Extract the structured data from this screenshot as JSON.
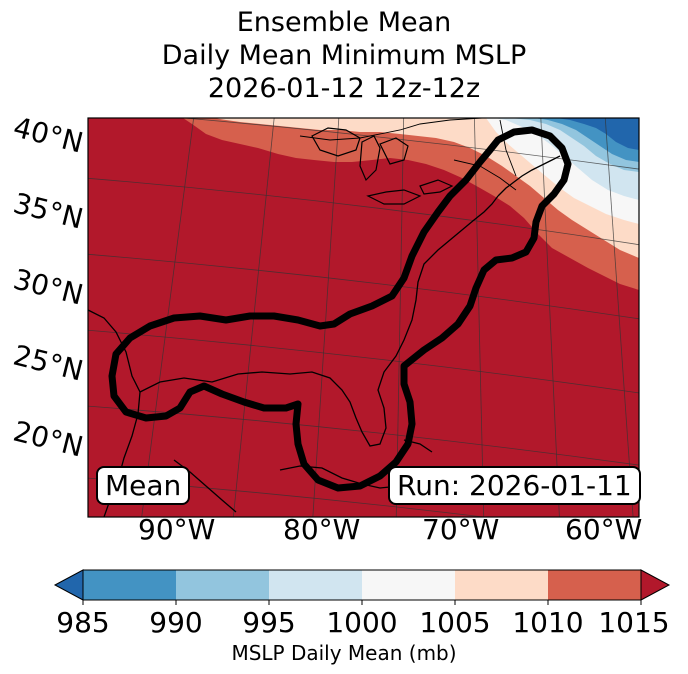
{
  "title": {
    "line1": "Ensemble Mean",
    "line2": "Daily Mean Minimum MSLP",
    "line3": "2026-01-12 12z-12z"
  },
  "map": {
    "lat_labels": [
      "40°N",
      "35°N",
      "30°N",
      "25°N",
      "20°N"
    ],
    "lon_labels": [
      "90°W",
      "80°W",
      "70°W",
      "60°W"
    ],
    "panel_label_left": "Mean",
    "panel_label_right": "Run: 2026-01-11"
  },
  "colorbar": {
    "ticks": [
      "985",
      "990",
      "995",
      "1000",
      "1005",
      "1010",
      "1015"
    ],
    "label": "MSLP Daily Mean (mb)",
    "colors": {
      "under": "#2166ac",
      "985-990": "#4393c3",
      "990-995": "#92c5de",
      "995-1000": "#d1e5f0",
      "1000-1005": "#f7f7f7",
      "1005-1010": "#fddbc7",
      "1010-1015": "#d6604d",
      "over": "#b2182b"
    }
  }
}
